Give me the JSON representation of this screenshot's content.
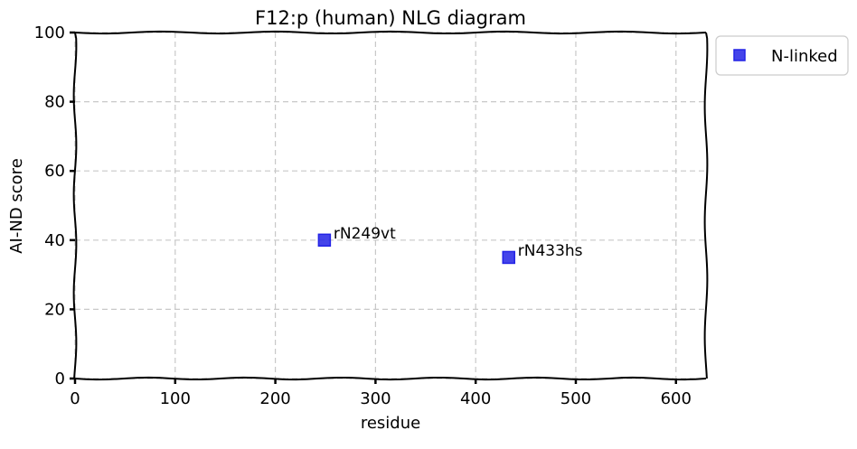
{
  "chart_data": {
    "type": "scatter",
    "title": "F12:p (human) NLG diagram",
    "xlabel": "residue",
    "ylabel": "AI-ND score",
    "xlim": [
      0,
      630
    ],
    "ylim": [
      0,
      100
    ],
    "xticks": [
      0,
      100,
      200,
      300,
      400,
      500,
      600
    ],
    "yticks": [
      0,
      20,
      40,
      60,
      80,
      100
    ],
    "grid": true,
    "legend_position": "outside top-right",
    "series": [
      {
        "name": "N-linked",
        "marker": "square",
        "color": "#2323e6",
        "points": [
          {
            "x": 249,
            "y": 40,
            "label": "rN249vt"
          },
          {
            "x": 433,
            "y": 35,
            "label": "rN433hs"
          }
        ]
      }
    ]
  }
}
